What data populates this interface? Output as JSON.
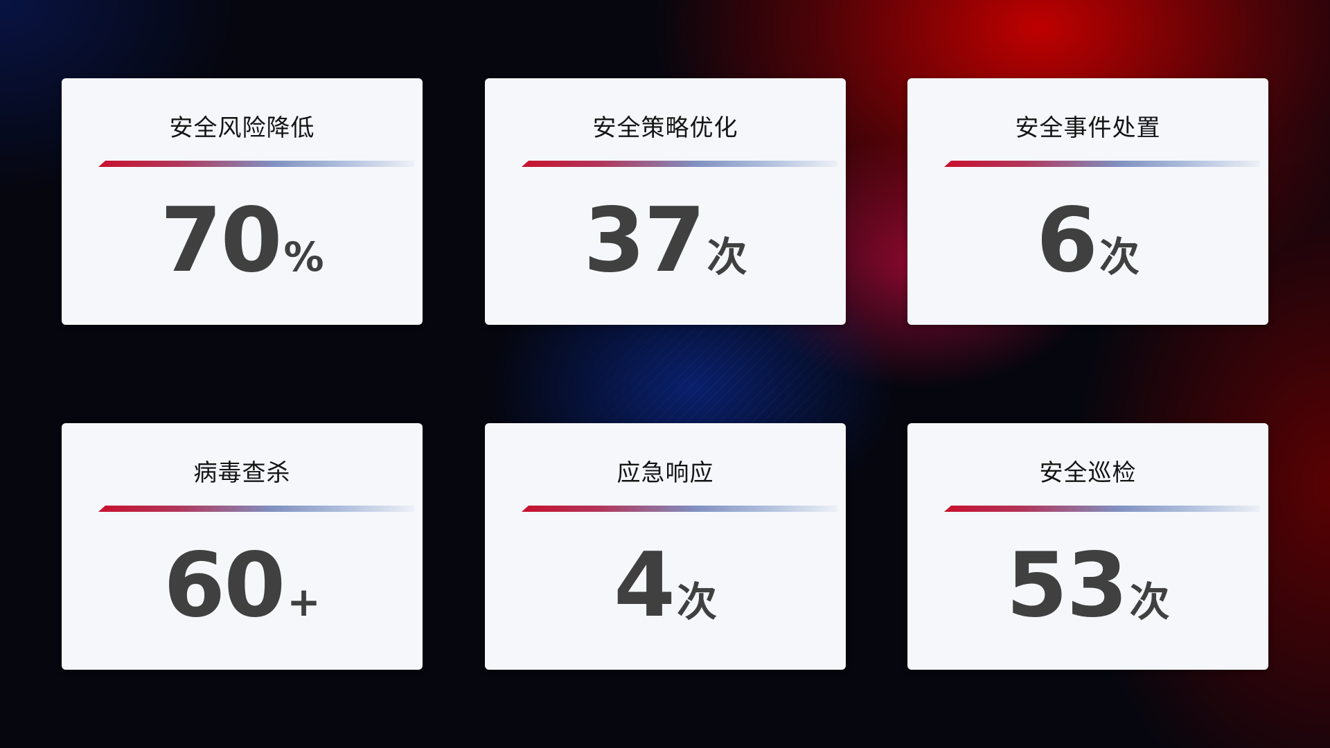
{
  "cards": [
    {
      "title": "安全风险降低",
      "value": "70",
      "unit": "%"
    },
    {
      "title": "安全策略优化",
      "value": "37",
      "unit": "次"
    },
    {
      "title": "安全事件处置",
      "value": "6",
      "unit": "次"
    },
    {
      "title": "病毒查杀",
      "value": "60",
      "unit": "+"
    },
    {
      "title": "应急响应",
      "value": "4",
      "unit": "次"
    },
    {
      "title": "安全巡检",
      "value": "53",
      "unit": "次"
    }
  ],
  "colors": {
    "accent_red": "#c8102e",
    "accent_blue": "#8090c0",
    "card_bg": "#f5f7fb",
    "value_text": "#404040"
  }
}
